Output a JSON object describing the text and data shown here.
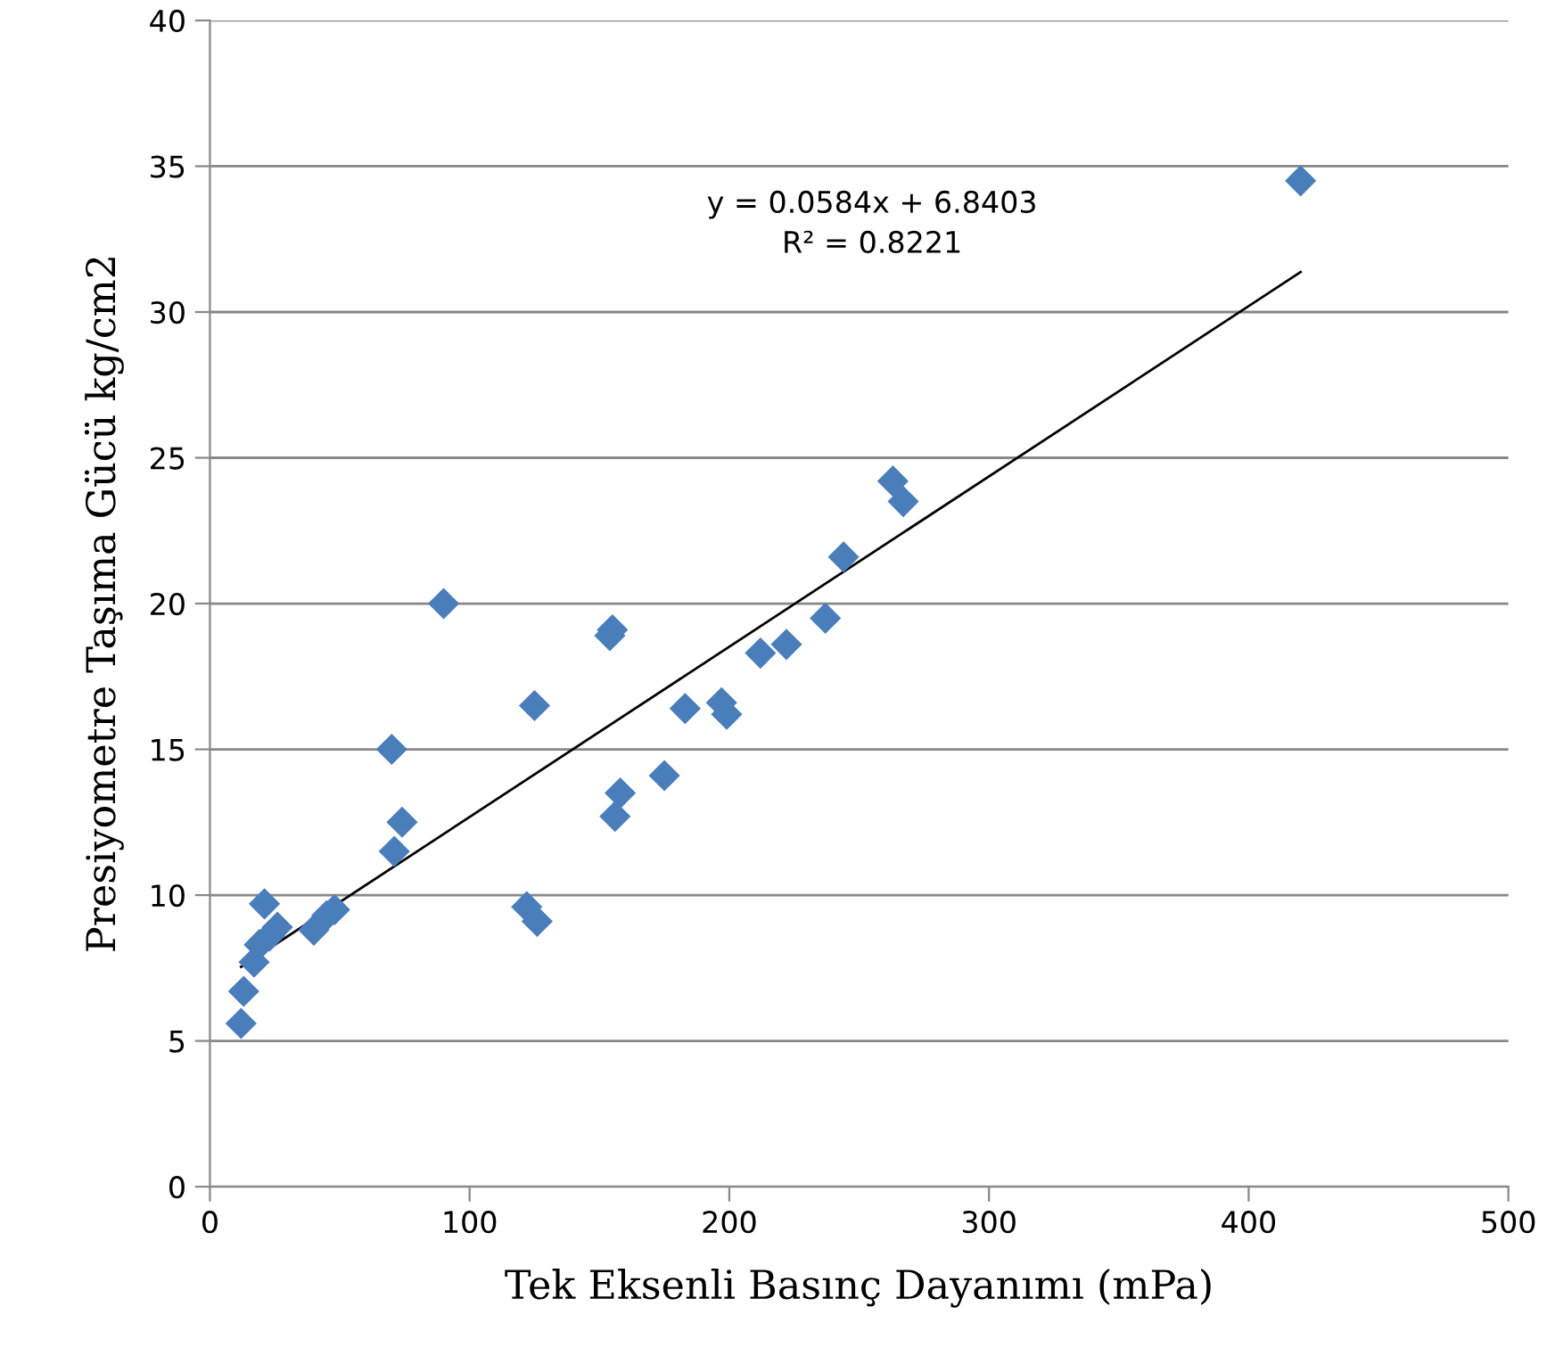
{
  "chart_data": {
    "type": "scatter",
    "xlabel": "Tek Eksenli Basınç Dayanımı (mPa)",
    "ylabel": "Presiyometre Taşıma Gücü kg/cm2",
    "xlim": [
      0,
      500
    ],
    "ylim": [
      0,
      40
    ],
    "xticks": [
      0,
      100,
      200,
      300,
      400,
      500
    ],
    "yticks": [
      0,
      5,
      10,
      15,
      20,
      25,
      30,
      35,
      40
    ],
    "grid": "y",
    "legend": false,
    "annotations": [
      "y = 0.0584x + 6.8403\nR² = 0.8221"
    ],
    "series": [
      {
        "color": "#4a7ebb",
        "marker": "diamond",
        "x": [
          12,
          13,
          17,
          19,
          21,
          23,
          26,
          40,
          45,
          48,
          70,
          71,
          74,
          90,
          122,
          126,
          125,
          154,
          155,
          156,
          158,
          175,
          183,
          197,
          199,
          212,
          222,
          237,
          244,
          263,
          267,
          420
        ],
        "values": [
          5.6,
          6.7,
          7.7,
          8.3,
          9.7,
          8.6,
          8.9,
          8.8,
          9.3,
          9.5,
          15,
          11.5,
          12.5,
          20,
          9.6,
          9.1,
          16.5,
          18.9,
          19.1,
          12.7,
          13.5,
          14.1,
          16.4,
          16.6,
          16.2,
          18.3,
          18.6,
          19.5,
          21.6,
          24.2,
          23.5,
          34.5
        ]
      },
      {
        "type": "line",
        "color": "#000000",
        "marker": "none",
        "line_style": "solid",
        "x": [
          12,
          420
        ],
        "values": [
          7.54,
          31.37
        ]
      }
    ]
  }
}
